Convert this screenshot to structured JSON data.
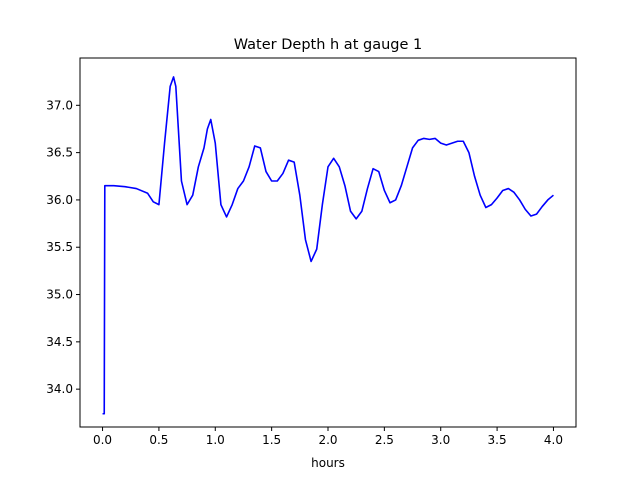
{
  "chart_data": {
    "type": "line",
    "title": "Water Depth h at gauge 1",
    "xlabel": "hours",
    "ylabel": "",
    "xlim": [
      -0.2,
      4.2
    ],
    "ylim": [
      33.6,
      37.5
    ],
    "x_ticks": [
      0.0,
      0.5,
      1.0,
      1.5,
      2.0,
      2.5,
      3.0,
      3.5,
      4.0
    ],
    "x_tick_labels": [
      "0.0",
      "0.5",
      "1.0",
      "1.5",
      "2.0",
      "2.5",
      "3.0",
      "3.5",
      "4.0"
    ],
    "y_ticks": [
      34.0,
      34.5,
      35.0,
      35.5,
      36.0,
      36.5,
      37.0
    ],
    "y_tick_labels": [
      "34.0",
      "34.5",
      "35.0",
      "35.5",
      "36.0",
      "36.5",
      "37.0"
    ],
    "grid": false,
    "legend": "none",
    "series": [
      {
        "color": "#0000ff",
        "x": [
          0.0,
          0.015,
          0.02,
          0.1,
          0.2,
          0.3,
          0.4,
          0.45,
          0.5,
          0.55,
          0.6,
          0.63,
          0.65,
          0.7,
          0.75,
          0.8,
          0.85,
          0.9,
          0.93,
          0.96,
          1.0,
          1.05,
          1.1,
          1.15,
          1.2,
          1.25,
          1.3,
          1.35,
          1.4,
          1.45,
          1.5,
          1.55,
          1.6,
          1.65,
          1.7,
          1.75,
          1.8,
          1.85,
          1.9,
          1.95,
          2.0,
          2.05,
          2.1,
          2.15,
          2.2,
          2.25,
          2.3,
          2.35,
          2.4,
          2.45,
          2.5,
          2.55,
          2.6,
          2.65,
          2.7,
          2.75,
          2.8,
          2.85,
          2.9,
          2.95,
          3.0,
          3.05,
          3.1,
          3.15,
          3.2,
          3.25,
          3.3,
          3.35,
          3.4,
          3.45,
          3.5,
          3.55,
          3.6,
          3.65,
          3.7,
          3.75,
          3.8,
          3.85,
          3.9,
          3.95,
          4.0
        ],
        "y": [
          33.74,
          33.74,
          36.15,
          36.15,
          36.14,
          36.12,
          36.07,
          35.98,
          35.95,
          36.6,
          37.2,
          37.3,
          37.2,
          36.2,
          35.95,
          36.05,
          36.35,
          36.55,
          36.75,
          36.85,
          36.6,
          35.95,
          35.82,
          35.95,
          36.12,
          36.2,
          36.35,
          36.57,
          36.55,
          36.3,
          36.2,
          36.2,
          36.28,
          36.42,
          36.4,
          36.05,
          35.58,
          35.35,
          35.48,
          35.95,
          36.35,
          36.44,
          36.35,
          36.15,
          35.88,
          35.8,
          35.88,
          36.12,
          36.33,
          36.3,
          36.1,
          35.97,
          36.0,
          36.15,
          36.35,
          36.55,
          36.63,
          36.65,
          36.64,
          36.65,
          36.6,
          36.58,
          36.6,
          36.62,
          36.62,
          36.5,
          36.25,
          36.05,
          35.92,
          35.95,
          36.02,
          36.1,
          36.12,
          36.08,
          36.0,
          35.9,
          35.83,
          35.85,
          35.93,
          36.0,
          36.05
        ]
      }
    ]
  }
}
